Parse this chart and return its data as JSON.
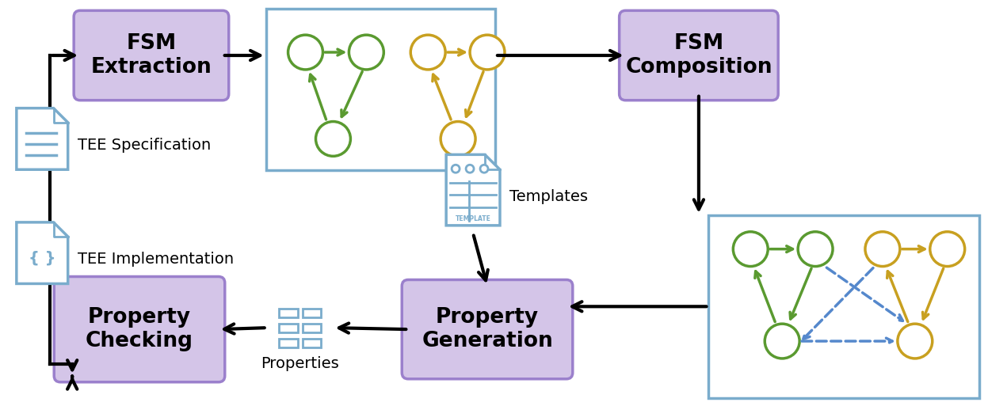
{
  "bg_color": "#ffffff",
  "purple_fill": "#d4c5e8",
  "purple_edge": "#9b80cc",
  "blue_edge": "#7aaccc",
  "green": "#5a9a30",
  "gold": "#c8a020",
  "blue_dashed": "#5588cc",
  "doc_blue": "#7aaccc",
  "box1_text": "FSM\nExtraction",
  "box2_text": "FSM\nComposition",
  "box3_text": "Property\nGeneration",
  "box4_text": "Property\nChecking",
  "tee_spec": "TEE Specification",
  "tee_impl": "TEE Implementation",
  "templates": "Templates",
  "properties": "Properties"
}
